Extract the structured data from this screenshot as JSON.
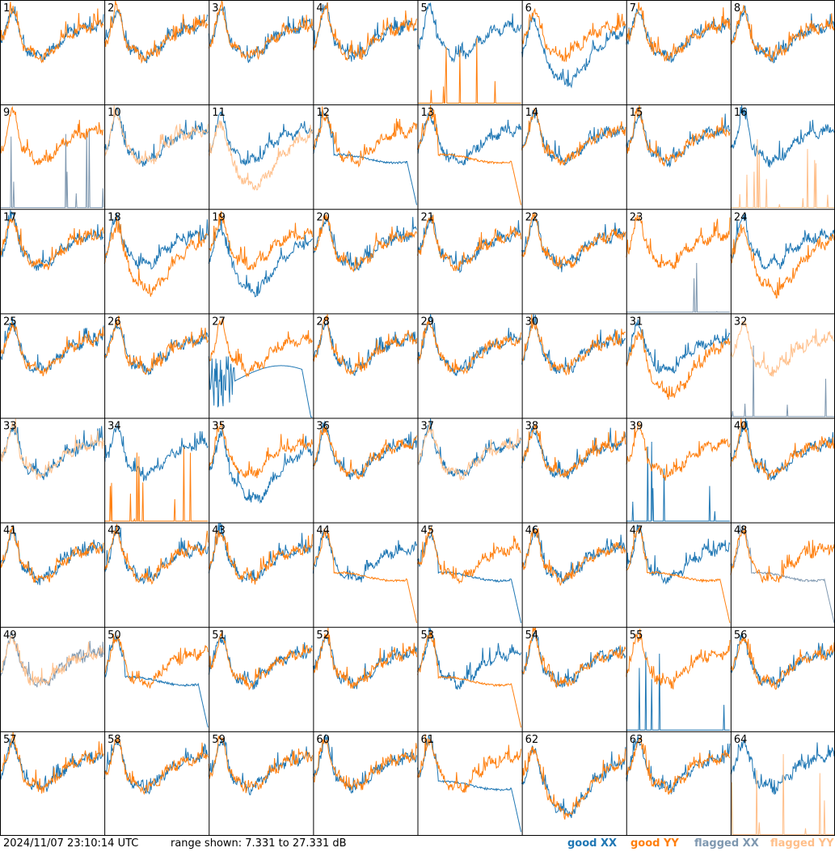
{
  "timestamp": "2024/11/07 23:10:14 UTC",
  "range_text": "range shown: 7.331 to 27.331 dB",
  "legend": [
    {
      "label": "good XX",
      "color": "#1f77b4"
    },
    {
      "label": "good YY",
      "color": "#ff7f0e"
    },
    {
      "label": "flagged XX",
      "color": "#7f98b0"
    },
    {
      "label": "flagged YY",
      "color": "#ffbf8a"
    }
  ],
  "chart_data": {
    "type": "line",
    "ylim": [
      7.331,
      27.331
    ],
    "grid": {
      "rows": 8,
      "cols": 8
    },
    "panels": [
      {
        "label": "1",
        "xx": "normal",
        "yy": "normal"
      },
      {
        "label": "2",
        "xx": "normal",
        "yy": "normal"
      },
      {
        "label": "3",
        "xx": "normal",
        "yy": "normal"
      },
      {
        "label": "4",
        "xx": "normal",
        "yy": "normal"
      },
      {
        "label": "5",
        "xx": "normal",
        "yy": "spikes"
      },
      {
        "label": "6",
        "xx": "low",
        "yy": "normal"
      },
      {
        "label": "7",
        "xx": "normal",
        "yy": "normal"
      },
      {
        "label": "8",
        "xx": "normal",
        "yy": "normal"
      },
      {
        "label": "9",
        "xx": "flagged-spikes",
        "yy": "normal"
      },
      {
        "label": "10",
        "xx": "normal",
        "yy": "flagged"
      },
      {
        "label": "11",
        "xx": "normal",
        "yy": "flagged-low"
      },
      {
        "label": "12",
        "xx": "drop",
        "yy": "normal"
      },
      {
        "label": "13",
        "xx": "normal",
        "yy": "drop"
      },
      {
        "label": "14",
        "xx": "normal",
        "yy": "normal"
      },
      {
        "label": "15",
        "xx": "normal",
        "yy": "normal"
      },
      {
        "label": "16",
        "xx": "normal",
        "yy": "flagged-spikes"
      },
      {
        "label": "17",
        "xx": "normal",
        "yy": "normal"
      },
      {
        "label": "18",
        "xx": "normal",
        "yy": "low"
      },
      {
        "label": "19",
        "xx": "low",
        "yy": "normal"
      },
      {
        "label": "20",
        "xx": "normal",
        "yy": "normal"
      },
      {
        "label": "21",
        "xx": "normal",
        "yy": "normal"
      },
      {
        "label": "22",
        "xx": "normal",
        "yy": "normal"
      },
      {
        "label": "23",
        "xx": "flagged-spikes",
        "yy": "normal"
      },
      {
        "label": "24",
        "xx": "normal",
        "yy": "low"
      },
      {
        "label": "25",
        "xx": "normal",
        "yy": "normal"
      },
      {
        "label": "26",
        "xx": "normal",
        "yy": "normal"
      },
      {
        "label": "27",
        "xx": "dip",
        "yy": "normal"
      },
      {
        "label": "28",
        "xx": "normal",
        "yy": "normal"
      },
      {
        "label": "29",
        "xx": "normal",
        "yy": "normal"
      },
      {
        "label": "30",
        "xx": "normal",
        "yy": "normal"
      },
      {
        "label": "31",
        "xx": "normal",
        "yy": "low"
      },
      {
        "label": "32",
        "xx": "flagged-spikes",
        "yy": "flagged"
      },
      {
        "label": "33",
        "xx": "normal",
        "yy": "flagged"
      },
      {
        "label": "34",
        "xx": "normal",
        "yy": "spikes"
      },
      {
        "label": "35",
        "xx": "low",
        "yy": "normal"
      },
      {
        "label": "36",
        "xx": "normal",
        "yy": "normal"
      },
      {
        "label": "37",
        "xx": "normal",
        "yy": "flagged"
      },
      {
        "label": "38",
        "xx": "normal",
        "yy": "normal"
      },
      {
        "label": "39",
        "xx": "spikes",
        "yy": "normal"
      },
      {
        "label": "40",
        "xx": "normal",
        "yy": "normal"
      },
      {
        "label": "41",
        "xx": "normal",
        "yy": "normal"
      },
      {
        "label": "42",
        "xx": "normal",
        "yy": "normal"
      },
      {
        "label": "43",
        "xx": "normal",
        "yy": "normal"
      },
      {
        "label": "44",
        "xx": "normal",
        "yy": "drop"
      },
      {
        "label": "45",
        "xx": "drop",
        "yy": "normal"
      },
      {
        "label": "46",
        "xx": "normal",
        "yy": "normal"
      },
      {
        "label": "47",
        "xx": "normal",
        "yy": "drop"
      },
      {
        "label": "48",
        "xx": "flagged-drop",
        "yy": "normal"
      },
      {
        "label": "49",
        "xx": "flagged",
        "yy": "flagged"
      },
      {
        "label": "50",
        "xx": "drop",
        "yy": "normal"
      },
      {
        "label": "51",
        "xx": "normal",
        "yy": "normal"
      },
      {
        "label": "52",
        "xx": "normal",
        "yy": "normal"
      },
      {
        "label": "53",
        "xx": "normal",
        "yy": "drop"
      },
      {
        "label": "54",
        "xx": "normal",
        "yy": "normal"
      },
      {
        "label": "55",
        "xx": "spikes",
        "yy": "normal"
      },
      {
        "label": "56",
        "xx": "normal",
        "yy": "normal"
      },
      {
        "label": "57",
        "xx": "normal",
        "yy": "normal"
      },
      {
        "label": "58",
        "xx": "normal",
        "yy": "normal"
      },
      {
        "label": "59",
        "xx": "normal",
        "yy": "normal"
      },
      {
        "label": "60",
        "xx": "normal",
        "yy": "normal"
      },
      {
        "label": "61",
        "xx": "drop",
        "yy": "normal"
      },
      {
        "label": "62",
        "xx": "low",
        "yy": "low"
      },
      {
        "label": "63",
        "xx": "normal",
        "yy": "normal"
      },
      {
        "label": "64",
        "xx": "normal",
        "yy": "flagged-spikes"
      }
    ]
  }
}
